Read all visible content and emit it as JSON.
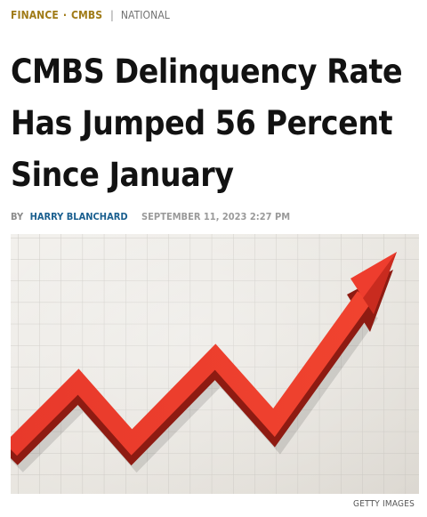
{
  "breadcrumb": {
    "primary": [
      "FINANCE",
      "CMBS"
    ],
    "separator_dot": "·",
    "divider": "|",
    "secondary": "NATIONAL"
  },
  "article": {
    "title": "CMBS Delinquency Rate Has Jumped 56 Percent Since January",
    "byline": {
      "prefix": "BY",
      "author": "HARRY BLANCHARD",
      "datetime": "SEPTEMBER 11, 2023 2:27 PM"
    }
  },
  "hero_image": {
    "subject": "red-zigzag-arrow-on-grid",
    "credit": "GETTY IMAGES"
  },
  "colors": {
    "category_link": "#a07b17",
    "author_link": "#1a5f8f",
    "arrow_red": "#e53a2b"
  }
}
